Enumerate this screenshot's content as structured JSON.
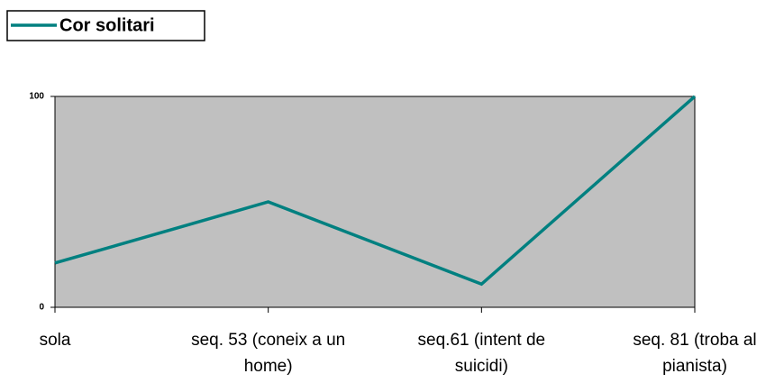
{
  "chart_data": {
    "type": "line",
    "categories": [
      "sola",
      "seq. 53 (coneix a un home)",
      "seq.61 (intent de suicidi)",
      "seq. 81 (troba al pianista)"
    ],
    "series": [
      {
        "name": "Cor solitari",
        "color": "#008080",
        "values": [
          21,
          50,
          11,
          100
        ]
      }
    ],
    "ylim": [
      0,
      100
    ],
    "yticks": [
      0,
      100
    ],
    "legend": "top-left",
    "plot_color": "#c0c0c0"
  }
}
